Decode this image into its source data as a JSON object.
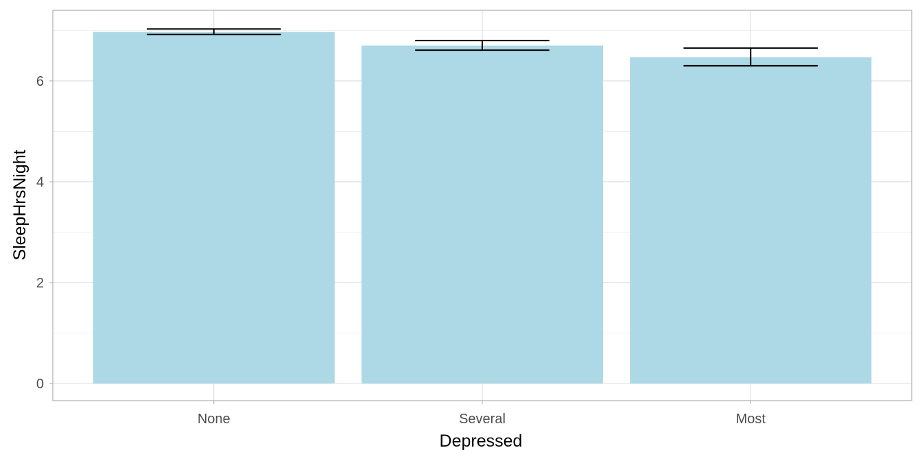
{
  "chart_data": {
    "type": "bar",
    "categories": [
      "None",
      "Several",
      "Most"
    ],
    "values": [
      6.97,
      6.7,
      6.47
    ],
    "error_low": [
      6.92,
      6.61,
      6.3
    ],
    "error_high": [
      7.03,
      6.8,
      6.65
    ],
    "xlabel": "Depressed",
    "ylabel": "SleepHrsNight",
    "ylim": [
      -0.34,
      7.4
    ],
    "yticks": [
      0,
      2,
      4,
      6
    ],
    "yticks_labels": [
      "0",
      "2",
      "4",
      "6"
    ],
    "grid": true,
    "bar_color": "#add8e6",
    "errorbar_color": "#000000"
  }
}
